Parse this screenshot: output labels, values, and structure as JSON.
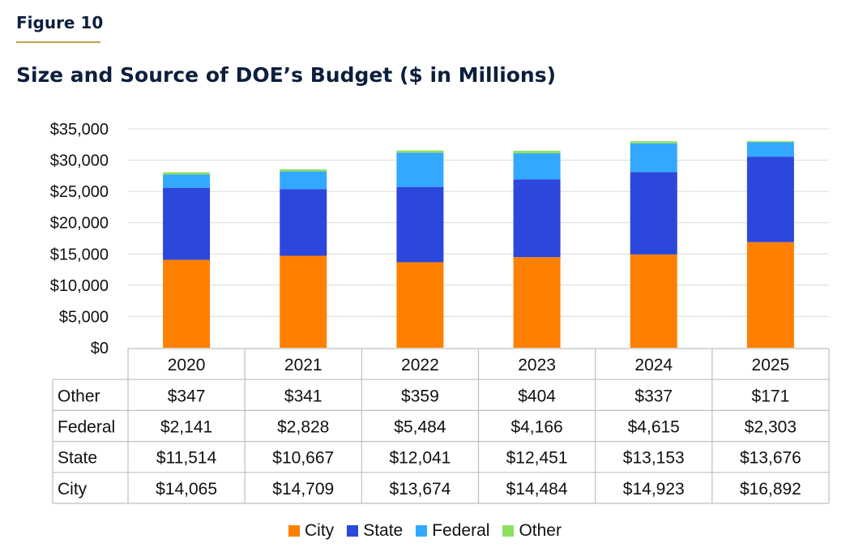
{
  "figure_label": "Figure 10",
  "chart_data": {
    "type": "bar",
    "stacked": true,
    "title": "Size and Source of DOE’s Budget ($ in Millions)",
    "categories": [
      "2020",
      "2021",
      "2022",
      "2023",
      "2024",
      "2025"
    ],
    "series": [
      {
        "name": "City",
        "color": "#ff8000",
        "values": [
          14065,
          14709,
          13674,
          14484,
          14923,
          16892
        ],
        "labels": [
          "$14,065",
          "$14,709",
          "$13,674",
          "$14,484",
          "$14,923",
          "$16,892"
        ]
      },
      {
        "name": "State",
        "color": "#2b47dc",
        "values": [
          11514,
          10667,
          12041,
          12451,
          13153,
          13676
        ],
        "labels": [
          "$11,514",
          "$10,667",
          "$12,041",
          "$12,451",
          "$13,153",
          "$13,676"
        ]
      },
      {
        "name": "Federal",
        "color": "#33a8ff",
        "values": [
          2141,
          2828,
          5484,
          4166,
          4615,
          2303
        ],
        "labels": [
          "$2,141",
          "$2,828",
          "$5,484",
          "$4,166",
          "$4,615",
          "$2,303"
        ]
      },
      {
        "name": "Other",
        "color": "#8fe060",
        "values": [
          347,
          341,
          359,
          404,
          337,
          171
        ],
        "labels": [
          "$347",
          "$341",
          "$359",
          "$404",
          "$337",
          "$171"
        ]
      }
    ],
    "table_row_order": [
      "Other",
      "Federal",
      "State",
      "City"
    ],
    "y_ticks": [
      "$0",
      "$5,000",
      "$10,000",
      "$15,000",
      "$20,000",
      "$25,000",
      "$30,000",
      "$35,000"
    ],
    "ylim": [
      0,
      35000
    ],
    "ytick_step": 5000,
    "grid": true,
    "legend_position": "bottom"
  }
}
